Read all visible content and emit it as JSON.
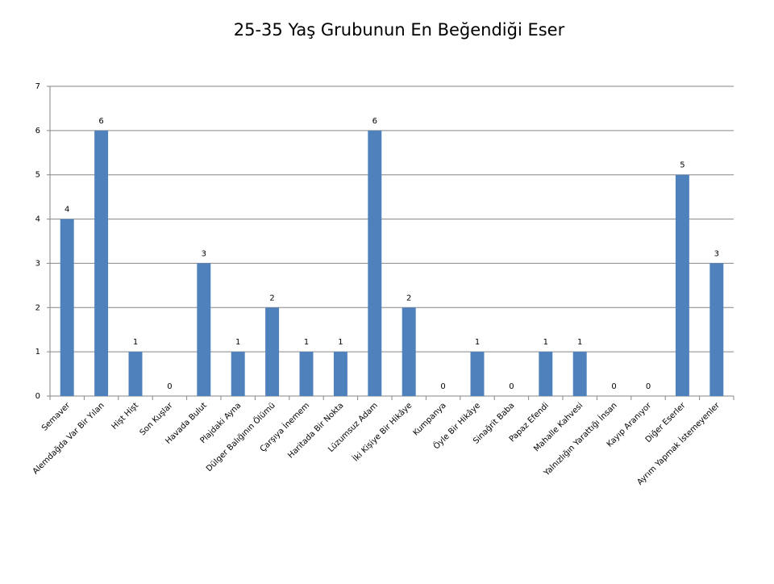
{
  "chart_data": {
    "type": "bar",
    "title": "25-35 Yaş Grubunun En Beğendiği Eser",
    "categories": [
      "Semaver",
      "Alemdağda Var Bir Yılan",
      "Hişt Hişt",
      "Son Kuşlar",
      "Havada Bulut",
      "Plajdaki Ayna",
      "Dülger Balığının Ölümü",
      "Çarşıya İnemem",
      "Haritada Bir Nokta",
      "Lüzumsuz Adam",
      "İki Kişiye Bir Hikâye",
      "Kumpanya",
      "Öyle Bir Hikâye",
      "Sinağrit Baba",
      "Papaz Efendi",
      "Mahalle Kahvesi",
      "Yalnızlığın Yarattığı İnsan",
      "Kayıp Aranıyor",
      "Diğer Eserler",
      "Ayrım Yapmak İstemeyenler"
    ],
    "values": [
      4,
      6,
      1,
      0,
      3,
      1,
      2,
      1,
      1,
      6,
      2,
      0,
      1,
      0,
      1,
      1,
      0,
      0,
      5,
      3
    ],
    "color": "#4f81bd",
    "ylim": [
      0,
      7
    ],
    "yticks": [
      0,
      1,
      2,
      3,
      4,
      5,
      6,
      7
    ],
    "grid": true
  }
}
